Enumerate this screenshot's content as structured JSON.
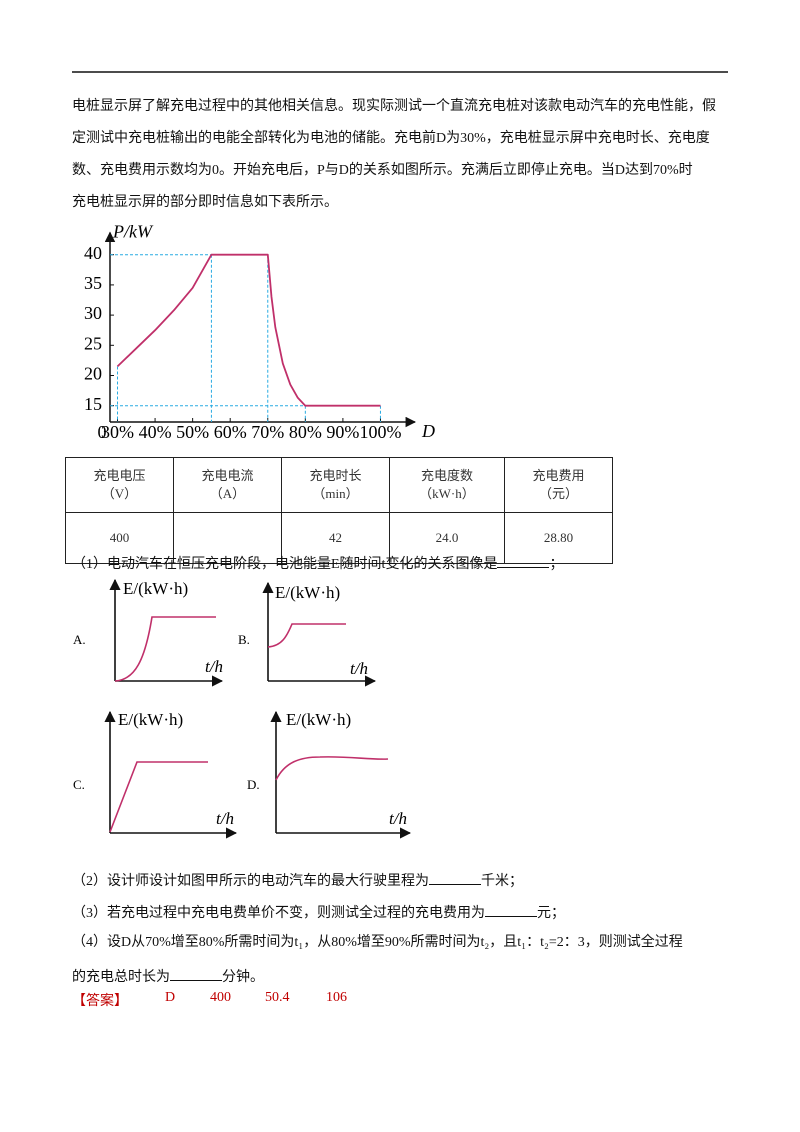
{
  "paragraph_lines": [
    "电桩显示屏了解充电过程中的其他相关信息。现实际测试一个直流充电桩对该款电动汽车的充电性能，假",
    "定测试中充电桩输出的电能全部转化为电池的储能。充电前D为30%，充电桩显示屏中充电时长、充电度",
    "数、充电费用示数均为0。开始充电后，P与D的关系如图所示。充满后立即停止充电。当D达到70%时",
    "充电桩显示屏的部分即时信息如下表所示。"
  ],
  "chart_data": {
    "type": "line",
    "y_label": "P/kW",
    "x_label": "D",
    "origin_label": "0",
    "x": [
      30,
      35,
      40,
      45,
      50,
      55,
      60,
      65,
      70,
      71,
      72,
      74,
      76,
      78,
      80,
      85,
      90,
      95,
      100
    ],
    "values": [
      21.5,
      24.5,
      27.5,
      30.8,
      34.5,
      40,
      40,
      40,
      40,
      33,
      28,
      22,
      18.5,
      16.3,
      15,
      15,
      15,
      15,
      15
    ],
    "color": "#c0306a",
    "guide_color": "#29abe2",
    "xlim": [
      28,
      106
    ],
    "ylim": [
      12.3,
      43
    ],
    "xticks": [
      {
        "value": 30,
        "label": "30%"
      },
      {
        "value": 40,
        "label": "40%"
      },
      {
        "value": 50,
        "label": "50%"
      },
      {
        "value": 60,
        "label": "60%"
      },
      {
        "value": 70,
        "label": "70%"
      },
      {
        "value": 80,
        "label": "80%"
      },
      {
        "value": 90,
        "label": "90%"
      },
      {
        "value": 100,
        "label": "100%"
      }
    ],
    "yticks": [
      15,
      20,
      25,
      30,
      35,
      40
    ]
  },
  "table": {
    "header": [
      [
        "充电电压",
        "（V）"
      ],
      [
        "充电电流",
        "（A）"
      ],
      [
        "充电时长",
        "（min）"
      ],
      [
        "充电度数",
        "（kW·h）"
      ],
      [
        "充电费用",
        "（元）"
      ]
    ],
    "rows": [
      [
        "400",
        null,
        "42",
        "24.0",
        "28.80"
      ]
    ]
  },
  "questions": [
    {
      "before": "（1）电动汽车在恒压充电阶段，电池能量E随时间t变化的关系图像是",
      "after": "；"
    },
    {
      "before": "（2）设计师设计如图甲所示的电动汽车的最大行驶里程为",
      "after": "千米；"
    },
    {
      "before": "（3）若充电过程中充电电费单价不变，则测试全过程的充电费用为",
      "after": "元；"
    },
    {
      "line1": "（4）设D从70%增至80%所需时间为t₁，从80%增至90%所需时间为t₂，且t₁：t₂=2：3，则测试全过程",
      "before": "的充电总时长为",
      "after": "分钟。"
    }
  ],
  "options": [
    {
      "letter": "A.",
      "y_label": "E/(kW·h)",
      "x_label": "t/h"
    },
    {
      "letter": "B.",
      "y_label": "E/(kW·h)",
      "x_label": "t/h"
    },
    {
      "letter": "C.",
      "y_label": "E/(kW·h)",
      "x_label": "t/h"
    },
    {
      "letter": "D.",
      "y_label": "E/(kW·h)",
      "x_label": "t/h"
    }
  ],
  "answer": {
    "label": "【答案】",
    "values": [
      "D",
      "400",
      "50.4",
      "106"
    ]
  }
}
